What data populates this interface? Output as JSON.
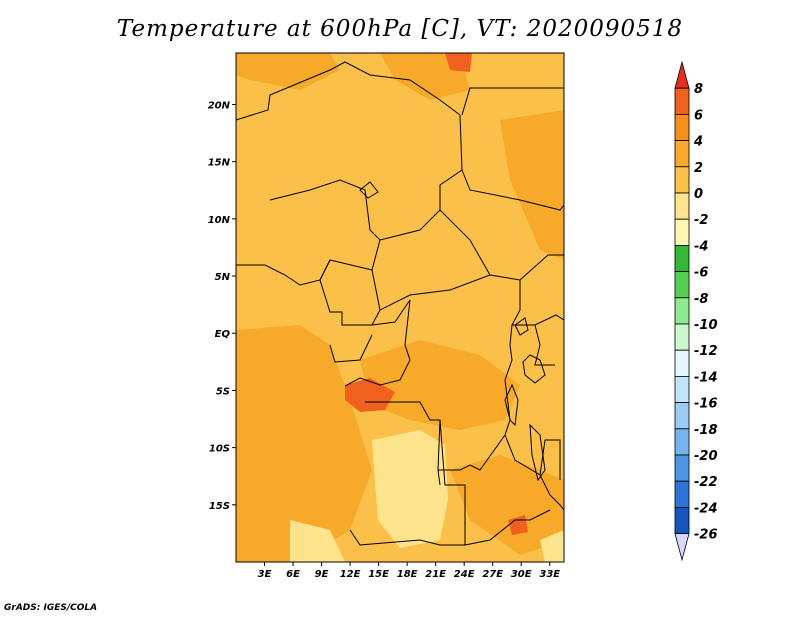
{
  "title": "Temperature at 600hPa [C], VT: 2020090518",
  "credit": "GrADS: IGES/COLA",
  "map": {
    "lon_range": [
      0,
      34.5
    ],
    "lat_range": [
      -20,
      24.5
    ],
    "lat_ticks": [
      {
        "value": 20,
        "label": "20N"
      },
      {
        "value": 15,
        "label": "15N"
      },
      {
        "value": 10,
        "label": "10N"
      },
      {
        "value": 5,
        "label": "5N"
      },
      {
        "value": 0,
        "label": "EQ"
      },
      {
        "value": -5,
        "label": "5S"
      },
      {
        "value": -10,
        "label": "10S"
      },
      {
        "value": -15,
        "label": "15S"
      }
    ],
    "lon_ticks": [
      {
        "value": 3,
        "label": "3E"
      },
      {
        "value": 6,
        "label": "6E"
      },
      {
        "value": 9,
        "label": "9E"
      },
      {
        "value": 12,
        "label": "12E"
      },
      {
        "value": 15,
        "label": "15E"
      },
      {
        "value": 18,
        "label": "18E"
      },
      {
        "value": 21,
        "label": "21E"
      },
      {
        "value": 24,
        "label": "24E"
      },
      {
        "value": 27,
        "label": "27E"
      },
      {
        "value": 30,
        "label": "30E"
      },
      {
        "value": 33,
        "label": "33E"
      }
    ]
  },
  "colorbar": {
    "labels": [
      "8",
      "6",
      "4",
      "2",
      "0",
      "-2",
      "-4",
      "-6",
      "-8",
      "-10",
      "-12",
      "-14",
      "-16",
      "-18",
      "-20",
      "-22",
      "-24",
      "-26"
    ],
    "colors": [
      "#e62e1e",
      "#f0601e",
      "#f5901c",
      "#f7a92a",
      "#fbc04a",
      "#fde48c",
      "#fff6b4",
      "#33b833",
      "#55d055",
      "#8fea8f",
      "#cdf7cd",
      "#e6f6ff",
      "#c2e4fb",
      "#9ccbf5",
      "#78b2ef",
      "#4f95e6",
      "#2c75d6",
      "#1654be",
      "#0c2f96",
      "#0a1a6e",
      "#d8d8ff"
    ]
  }
}
